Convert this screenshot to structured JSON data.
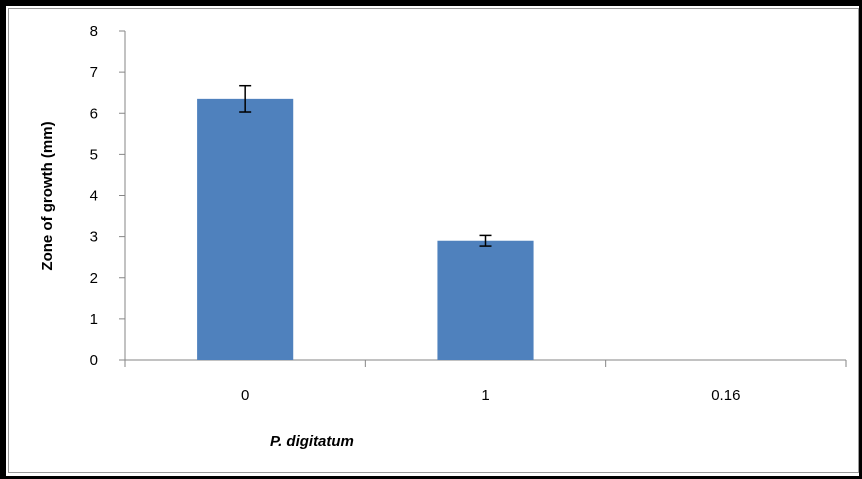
{
  "chart_data": {
    "type": "bar",
    "categories": [
      "0",
      "1",
      "0.16"
    ],
    "values": [
      6.35,
      2.9,
      0
    ],
    "errors": [
      0.32,
      0.13,
      0
    ],
    "title": "",
    "xlabel": "P. digitatum",
    "ylabel": "Zone of growth (mm)",
    "ylim": [
      0,
      8
    ],
    "yticks": [
      "0",
      "1",
      "2",
      "3",
      "4",
      "5",
      "6",
      "7",
      "8"
    ],
    "grid": false,
    "legend": "none",
    "bar_color": "#4f81bd"
  }
}
